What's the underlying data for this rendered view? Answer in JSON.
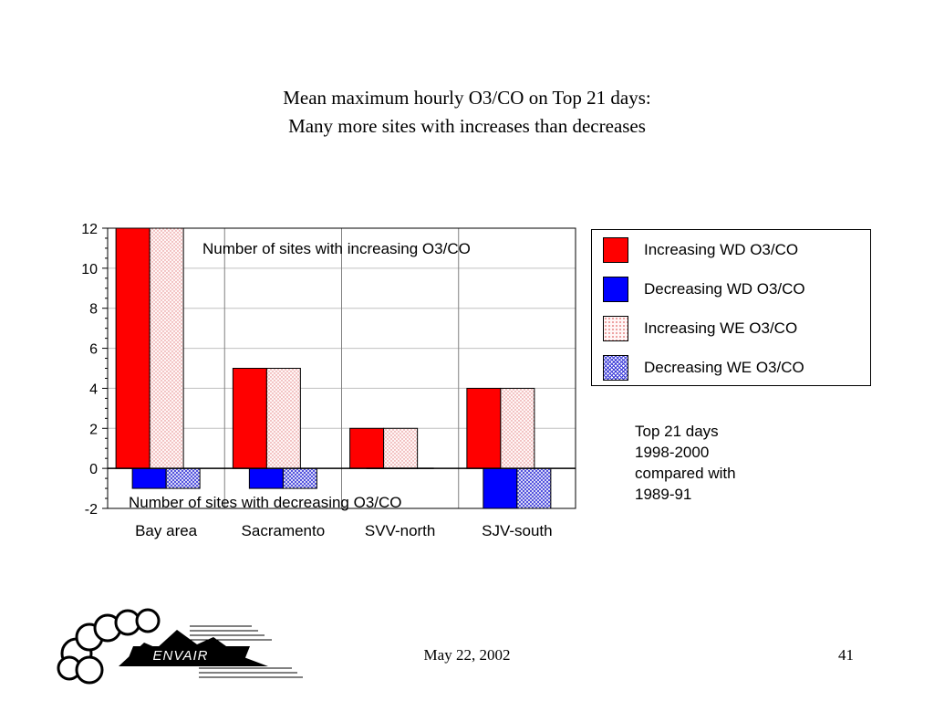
{
  "slide": {
    "title_line1": "Mean maximum hourly O3/CO on Top 21 days:",
    "title_line2": "Many more sites with increases than decreases",
    "date": "May 22, 2002",
    "page_number": "41",
    "logo_text": "ENVAIR"
  },
  "chart_data": {
    "type": "bar",
    "categories": [
      "Bay area",
      "Sacramento",
      "SVV-north",
      "SJV-south"
    ],
    "series": [
      {
        "name": "Increasing WD O3/CO",
        "values": [
          12,
          5,
          2,
          4
        ],
        "color": "#ff0000",
        "pattern": "solid"
      },
      {
        "name": "Decreasing WD O3/CO",
        "values": [
          -1,
          -1,
          0,
          -2
        ],
        "color": "#0000ff",
        "pattern": "solid"
      },
      {
        "name": "Increasing WE O3/CO",
        "values": [
          12,
          5,
          2,
          4
        ],
        "color": "#f08080",
        "pattern": "dots"
      },
      {
        "name": "Decreasing WE O3/CO",
        "values": [
          -1,
          -1,
          0,
          -2
        ],
        "color": "#3a3ad8",
        "pattern": "crosshatch"
      }
    ],
    "ylim": [
      -2,
      12
    ],
    "yticks": [
      "12",
      "10",
      "8",
      "6",
      "4",
      "2",
      "0",
      "-2"
    ],
    "grid": true,
    "legend_position": "right",
    "annotations": {
      "increasing": "Number of sites with increasing O3/CO",
      "decreasing": "Number of sites with decreasing O3/CO"
    },
    "note": [
      "Top 21 days",
      "1998-2000",
      "compared with",
      "1989-91"
    ]
  }
}
